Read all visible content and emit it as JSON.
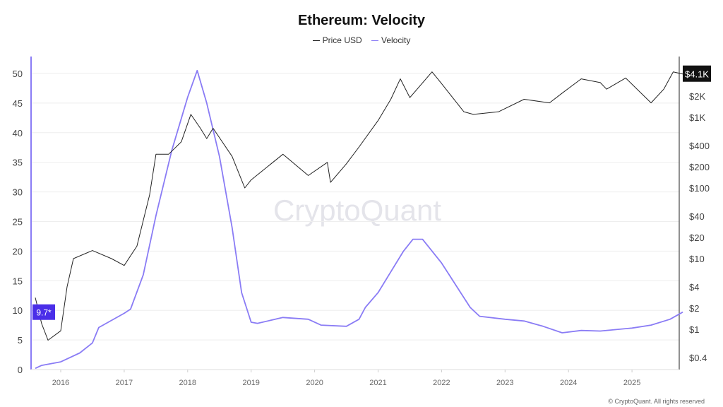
{
  "chart_data": {
    "type": "line",
    "title": "Ethereum: Velocity",
    "legend": [
      {
        "name": "Price USD",
        "color": "#222222"
      },
      {
        "name": "Velocity",
        "color": "#8a7cf5"
      }
    ],
    "legend_placement": "top-center",
    "x_ticks": [
      "2016",
      "2017",
      "2018",
      "2019",
      "2020",
      "2021",
      "2022",
      "2023",
      "2024",
      "2025"
    ],
    "x_range": [
      2015.6,
      2025.85
    ],
    "y_left": {
      "ticks": [
        0,
        5,
        10,
        15,
        20,
        25,
        30,
        35,
        40,
        45,
        50
      ],
      "range": [
        0,
        50
      ],
      "current_label": "9.7*",
      "current_value": 9.7
    },
    "y_right": {
      "scale": "log",
      "ticks": [
        {
          "v": 0.4,
          "l": "$0.4"
        },
        {
          "v": 1,
          "l": "$1"
        },
        {
          "v": 2,
          "l": "$2"
        },
        {
          "v": 4,
          "l": "$4"
        },
        {
          "v": 10,
          "l": "$10"
        },
        {
          "v": 20,
          "l": "$20"
        },
        {
          "v": 40,
          "l": "$40"
        },
        {
          "v": 100,
          "l": "$100"
        },
        {
          "v": 200,
          "l": "$200"
        },
        {
          "v": 400,
          "l": "$400"
        },
        {
          "v": 1000,
          "l": "$1K"
        },
        {
          "v": 2000,
          "l": "$2K"
        }
      ],
      "current_label": "$4.1K",
      "current_value": 4100
    },
    "series": [
      {
        "name": "Velocity",
        "axis": "left",
        "x": [
          2015.6,
          2015.7,
          2016.0,
          2016.3,
          2016.5,
          2016.6,
          2017.0,
          2017.1,
          2017.3,
          2017.5,
          2017.75,
          2018.0,
          2018.15,
          2018.3,
          2018.5,
          2018.7,
          2018.85,
          2019.0,
          2019.1,
          2019.5,
          2019.9,
          2020.1,
          2020.5,
          2020.7,
          2020.8,
          2021.0,
          2021.2,
          2021.4,
          2021.55,
          2021.7,
          2022.0,
          2022.3,
          2022.45,
          2022.6,
          2023.0,
          2023.3,
          2023.6,
          2023.9,
          2024.2,
          2024.5,
          2025.0,
          2025.3,
          2025.6,
          2025.8
        ],
        "y": [
          0.2,
          0.7,
          1.3,
          2.8,
          4.5,
          7.1,
          9.5,
          10.2,
          16,
          26,
          37,
          46,
          50.5,
          45,
          36,
          24,
          13,
          8,
          7.8,
          8.8,
          8.5,
          7.5,
          7.3,
          8.5,
          10.5,
          13,
          16.5,
          20,
          22,
          22,
          18,
          13,
          10.5,
          9,
          8.5,
          8.2,
          7.3,
          6.2,
          6.6,
          6.5,
          7,
          7.5,
          8.5,
          9.7
        ]
      },
      {
        "name": "Price USD",
        "axis": "right",
        "x": [
          2015.6,
          2015.7,
          2015.8,
          2016.0,
          2016.1,
          2016.2,
          2016.5,
          2016.8,
          2017.0,
          2017.2,
          2017.4,
          2017.5,
          2017.7,
          2017.9,
          2018.05,
          2018.2,
          2018.3,
          2018.4,
          2018.7,
          2018.9,
          2019.0,
          2019.5,
          2019.9,
          2020.2,
          2020.25,
          2020.5,
          2020.7,
          2021.0,
          2021.2,
          2021.35,
          2021.5,
          2021.85,
          2022.0,
          2022.35,
          2022.5,
          2022.9,
          2023.3,
          2023.7,
          2023.9,
          2024.2,
          2024.5,
          2024.6,
          2024.9,
          2025.3,
          2025.5,
          2025.65,
          2025.8
        ],
        "y": [
          2.8,
          1.2,
          0.7,
          0.95,
          4,
          10,
          13,
          10,
          8,
          15,
          80,
          300,
          300,
          450,
          1100,
          700,
          500,
          700,
          280,
          100,
          130,
          300,
          150,
          230,
          120,
          220,
          380,
          900,
          1800,
          3500,
          1900,
          4400,
          3000,
          1200,
          1100,
          1200,
          1800,
          1600,
          2200,
          3500,
          3100,
          2500,
          3600,
          1600,
          2500,
          4400,
          4100
        ]
      }
    ],
    "watermark": "CryptoQuant",
    "footer": "© CryptoQuant. All rights reserved"
  }
}
